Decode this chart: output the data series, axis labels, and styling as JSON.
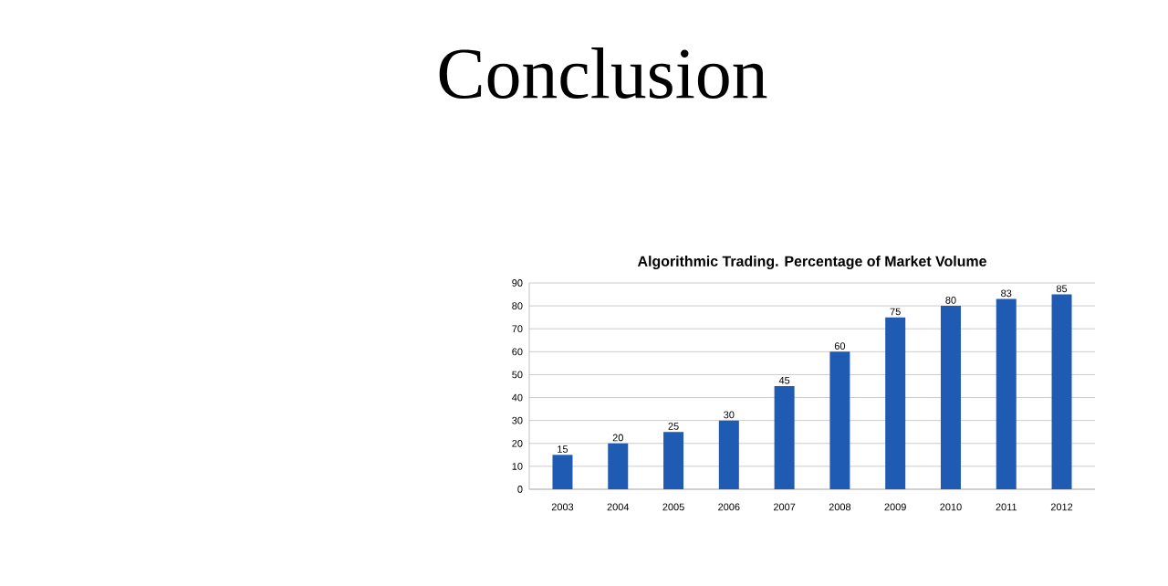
{
  "chart_data": {
    "type": "bar",
    "title": "Algorithmic Trading. Percentage of Market Volume",
    "annotations": [
      "Conclusion"
    ],
    "categories": [
      "2003",
      "2004",
      "2005",
      "2006",
      "2007",
      "2008",
      "2009",
      "2010",
      "2011",
      "2012"
    ],
    "values": [
      15,
      20,
      25,
      30,
      45,
      60,
      75,
      80,
      83,
      85
    ],
    "color": "#1f5bb3",
    "ylim": [
      0,
      90
    ],
    "yticks": [
      0,
      10,
      20,
      30,
      40,
      50,
      60,
      70,
      80,
      90
    ],
    "grid": "y",
    "data_labels": true
  }
}
